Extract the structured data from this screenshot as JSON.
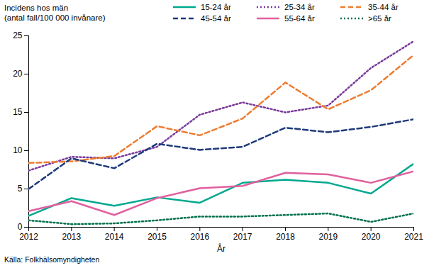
{
  "chart_data": {
    "type": "line",
    "ylabel": "Incidens hos män\n(antal fall/100 000 invånare)",
    "xlabel": "År",
    "source": "Källa: Folkhälsomyndigheten",
    "x": [
      2012,
      2013,
      2014,
      2015,
      2016,
      2017,
      2018,
      2019,
      2020,
      2021
    ],
    "xlim": [
      2012,
      2021
    ],
    "xticks": [
      2012,
      2013,
      2014,
      2015,
      2016,
      2017,
      2018,
      2019,
      2020,
      2021
    ],
    "ylim": [
      0,
      25
    ],
    "yticks": [
      0,
      5,
      10,
      15,
      20,
      25
    ],
    "grid": false,
    "legend": "top",
    "series": [
      {
        "name": "15-24 år",
        "color": "#00a88f",
        "line_style": "solid",
        "values": [
          1.5,
          3.8,
          2.8,
          3.9,
          3.2,
          5.8,
          6.2,
          5.8,
          4.4,
          8.3
        ]
      },
      {
        "name": "25-34 år",
        "color": "#7a3a9a",
        "line_style": "dotted",
        "values": [
          7.4,
          9.2,
          9.0,
          10.5,
          14.7,
          16.3,
          15.0,
          15.9,
          20.8,
          24.3
        ]
      },
      {
        "name": "35-44 år",
        "color": "#ed7d31",
        "line_style": "dashed",
        "values": [
          8.4,
          8.6,
          9.3,
          13.2,
          12.0,
          14.2,
          18.9,
          15.4,
          17.9,
          22.5
        ]
      },
      {
        "name": "45-54 år",
        "color": "#1f3a7a",
        "line_style": "dashed",
        "values": [
          5.0,
          9.0,
          7.7,
          10.9,
          10.1,
          10.5,
          13.0,
          12.4,
          13.1,
          14.1
        ]
      },
      {
        "name": "55-64 år",
        "color": "#e0609e",
        "line_style": "solid",
        "values": [
          2.1,
          3.4,
          1.6,
          3.8,
          5.1,
          5.4,
          7.1,
          6.9,
          5.8,
          7.3
        ]
      },
      {
        "name": ">65 år",
        "color": "#00704a",
        "line_style": "dotted",
        "values": [
          0.9,
          0.4,
          0.5,
          0.9,
          1.4,
          1.4,
          1.6,
          1.8,
          0.7,
          1.8
        ]
      }
    ]
  }
}
